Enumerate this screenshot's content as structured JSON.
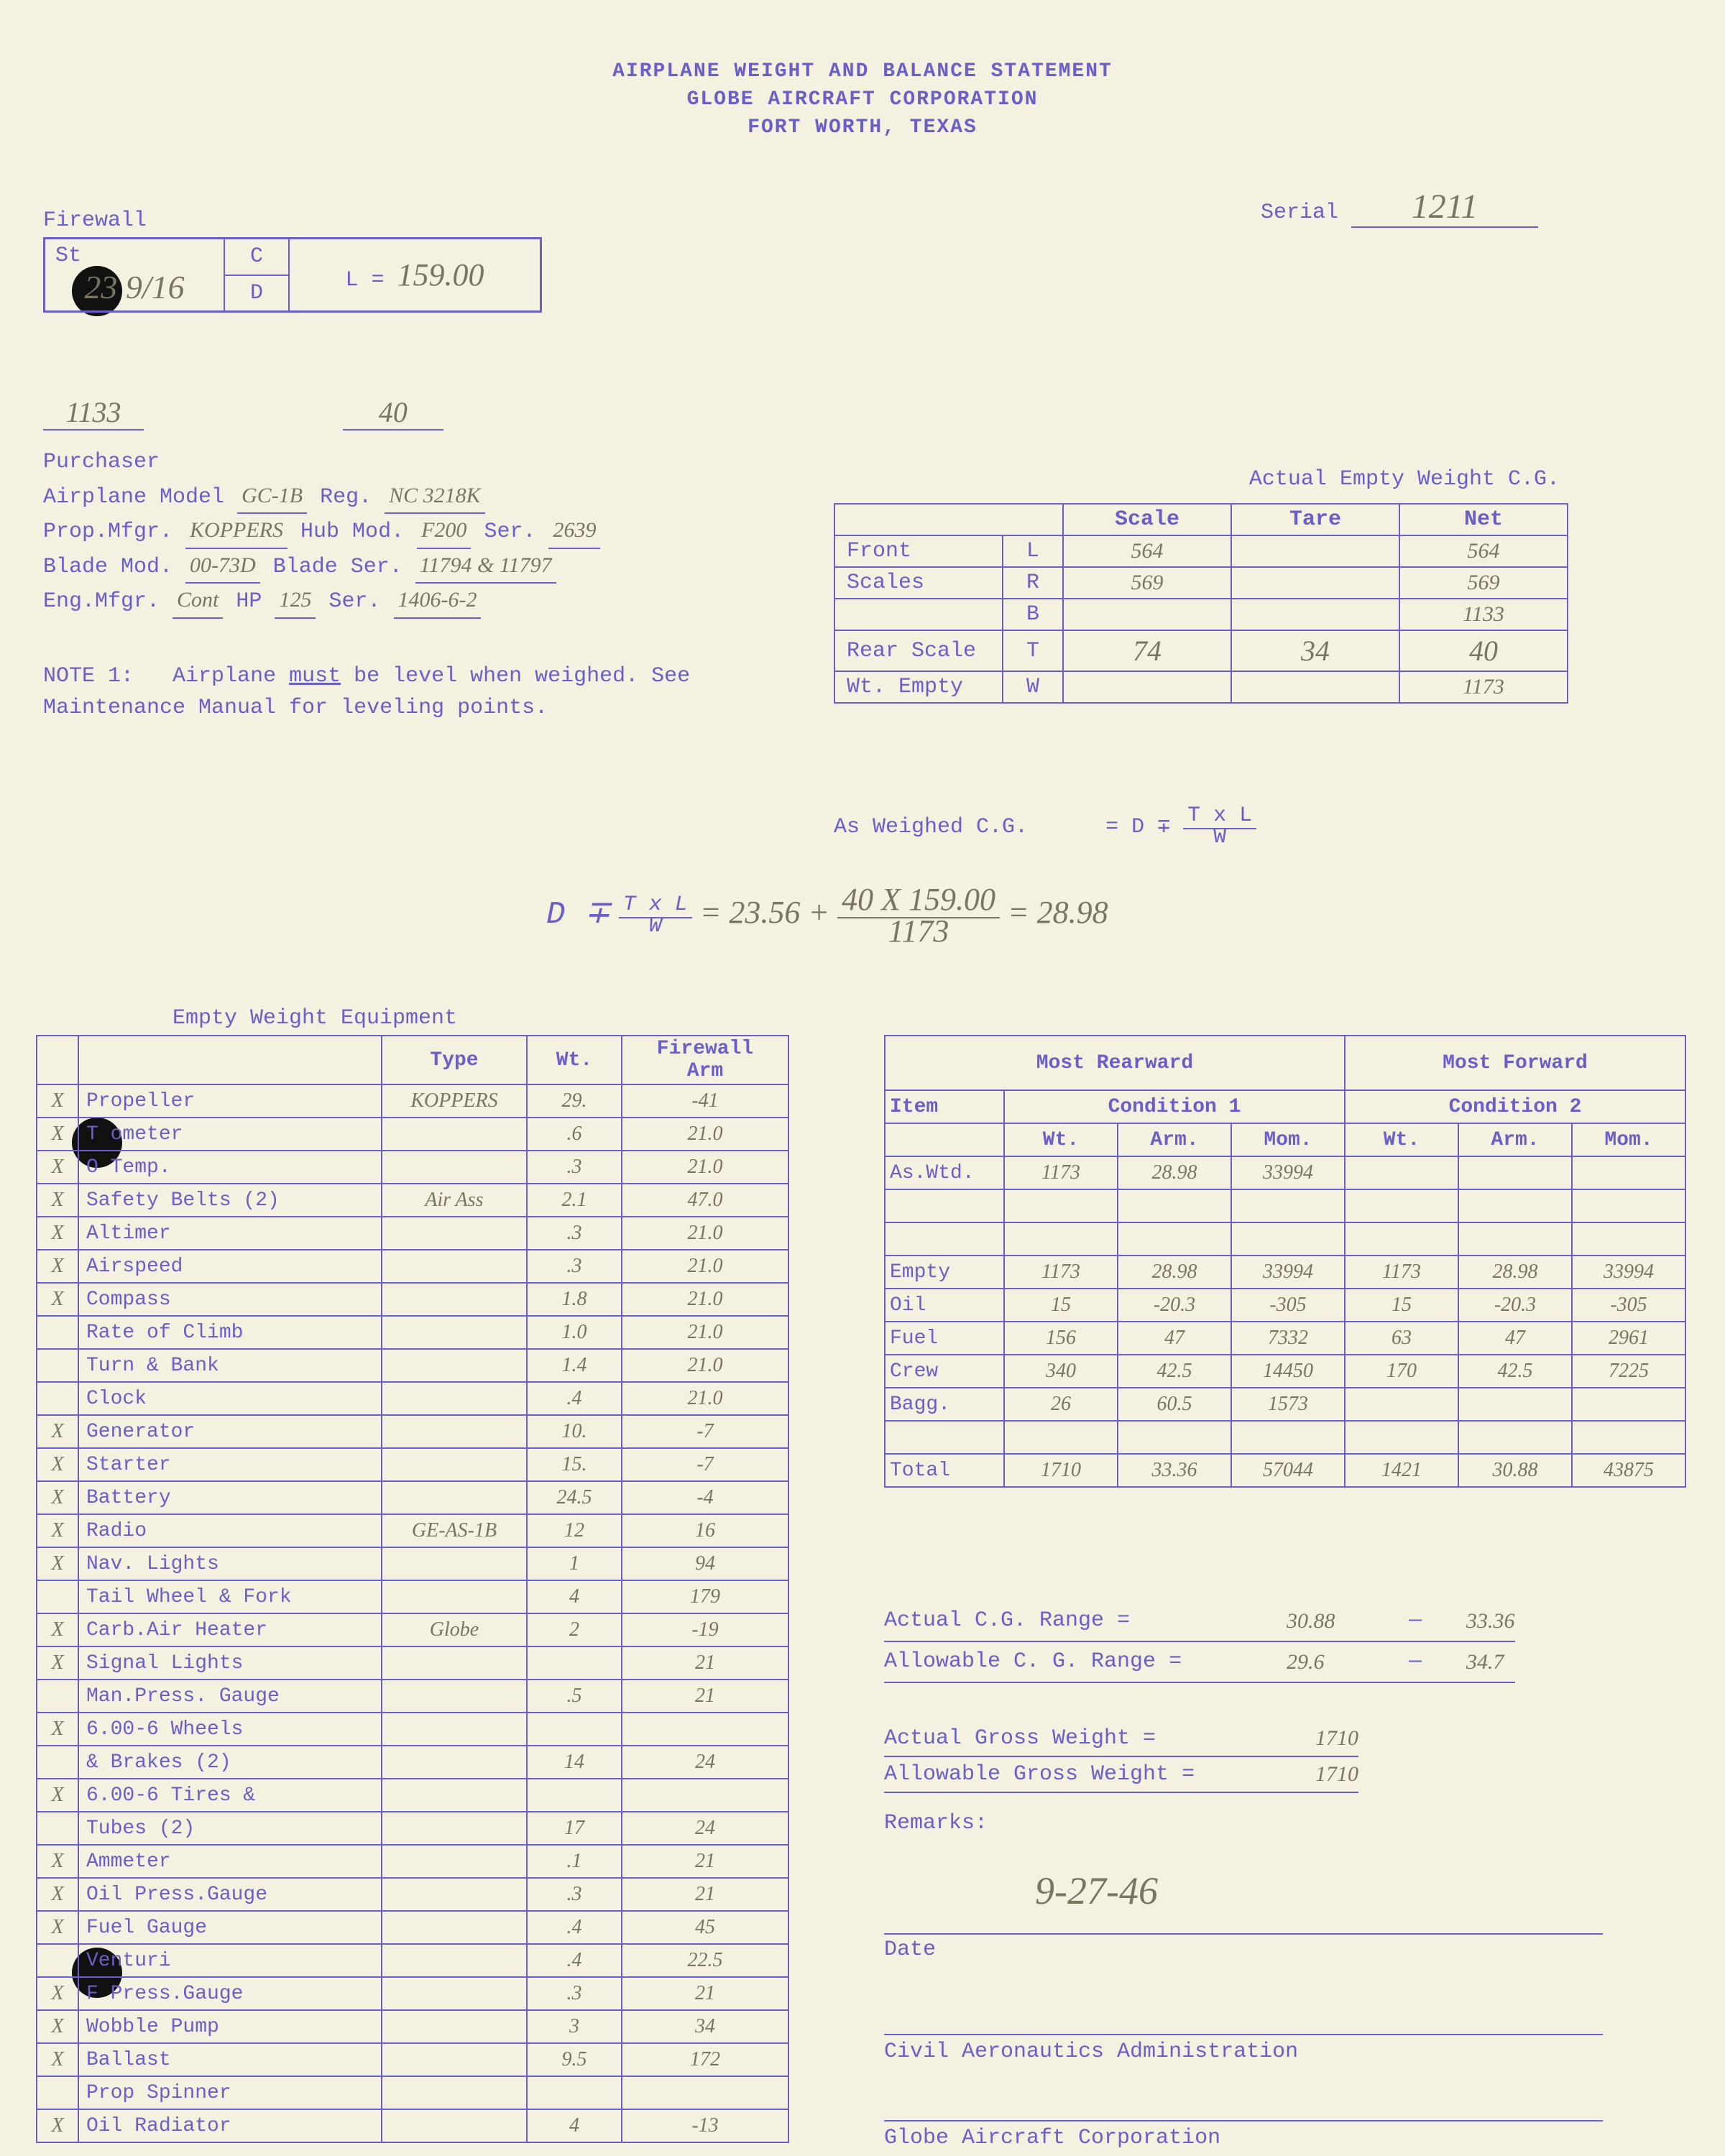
{
  "header": {
    "l1": "AIRPLANE WEIGHT AND BALANCE STATEMENT",
    "l2": "GLOBE AIRCRAFT CORPORATION",
    "l3": "FORT WORTH, TEXAS"
  },
  "serial": {
    "label": "Serial",
    "value": "1211"
  },
  "firewall": {
    "label": "Firewall",
    "st_label": "St",
    "st": "23 9/16",
    "c": "C",
    "d": "D",
    "L_label": "L =",
    "L": "159.00"
  },
  "nums_below": {
    "a": "1133",
    "b": "40"
  },
  "purchaser": {
    "title": "Purchaser",
    "rows": {
      "model_lbl": "Airplane Model",
      "model": "GC-1B",
      "reg_lbl": "Reg.",
      "reg": "NC 3218K",
      "prop_mfgr_lbl": "Prop.Mfgr.",
      "prop_mfgr": "KOPPERS",
      "hub_lbl": "Hub Mod.",
      "hub": "F200",
      "hub_ser_lbl": "Ser.",
      "hub_ser": "2639",
      "blade_lbl": "Blade Mod.",
      "blade": "00-73D",
      "blade_ser_lbl": "Blade Ser.",
      "blade_ser": "11794 & 11797",
      "eng_lbl": "Eng.Mfgr.",
      "eng": "Cont",
      "hp_lbl": "HP",
      "hp": "125",
      "eng_ser_lbl": "Ser.",
      "eng_ser": "1406-6-2"
    }
  },
  "note1": {
    "lbl": "NOTE 1:",
    "txt1": "Airplane ",
    "must": "must",
    "txt2": " be level when weighed. See Maintenance Manual for leveling points."
  },
  "cg": {
    "title": "Actual Empty Weight C.G.",
    "cols": {
      "scale": "Scale",
      "tare": "Tare",
      "net": "Net"
    },
    "rows": [
      {
        "a": "Front",
        "b": "L",
        "s": "564",
        "t": "",
        "n": "564"
      },
      {
        "a": "Scales",
        "b": "R",
        "s": "569",
        "t": "",
        "n": "569"
      },
      {
        "a": "",
        "b": "B",
        "s": "",
        "t": "",
        "n": "1133"
      },
      {
        "a": "Rear Scale",
        "b": "T",
        "s": "74",
        "t": "34",
        "n": "40"
      },
      {
        "a": "Wt. Empty",
        "b": "W",
        "s": "",
        "t": "",
        "n": "1173"
      }
    ],
    "formula_lbl": "As Weighed C.G.",
    "formula_eq": "= D ∓",
    "formula_frac_t": "T x L",
    "formula_frac_b": "W"
  },
  "calc": {
    "pre": "D ∓",
    "frac_t": "T x L",
    "frac_b": "W",
    "eq": "= 23.56 +",
    "n_t": "40 X   159.00",
    "n_b": "1173",
    "res": "= 28.98"
  },
  "ewe": {
    "title": "Empty Weight Equipment",
    "cols": {
      "type": "Type",
      "wt": "Wt.",
      "arm": "Firewall\nArm"
    },
    "rows": [
      {
        "x": "X",
        "n": "Propeller",
        "t": "KOPPERS",
        "w": "29.",
        "a": "-41"
      },
      {
        "x": "X",
        "n": "T  ometer",
        "t": "",
        "w": ".6",
        "a": "21.0"
      },
      {
        "x": "X",
        "n": "O   Temp.",
        "t": "",
        "w": ".3",
        "a": "21.0"
      },
      {
        "x": "X",
        "n": "Safety Belts (2)",
        "t": "Air Ass",
        "w": "2.1",
        "a": "47.0"
      },
      {
        "x": "X",
        "n": "Altimer",
        "t": "",
        "w": ".3",
        "a": "21.0"
      },
      {
        "x": "X",
        "n": "Airspeed",
        "t": "",
        "w": ".3",
        "a": "21.0"
      },
      {
        "x": "X",
        "n": "Compass",
        "t": "",
        "w": "1.8",
        "a": "21.0"
      },
      {
        "x": "",
        "n": "Rate of Climb",
        "t": "",
        "w": "1.0",
        "a": "21.0"
      },
      {
        "x": "",
        "n": "Turn & Bank",
        "t": "",
        "w": "1.4",
        "a": "21.0"
      },
      {
        "x": "",
        "n": "Clock",
        "t": "",
        "w": ".4",
        "a": "21.0"
      },
      {
        "x": "X",
        "n": "Generator",
        "t": "",
        "w": "10.",
        "a": "-7"
      },
      {
        "x": "X",
        "n": "Starter",
        "t": "",
        "w": "15.",
        "a": "-7"
      },
      {
        "x": "X",
        "n": "Battery",
        "t": "",
        "w": "24.5",
        "a": "-4"
      },
      {
        "x": "X",
        "n": "Radio",
        "t": "GE-AS-1B",
        "w": "12",
        "a": "16"
      },
      {
        "x": "X",
        "n": "Nav. Lights",
        "t": "",
        "w": "1",
        "a": "94"
      },
      {
        "x": "",
        "n": "Tail Wheel & Fork",
        "t": "",
        "w": "4",
        "a": "179"
      },
      {
        "x": "X",
        "n": "Carb.Air Heater",
        "t": "Globe",
        "w": "2",
        "a": "-19"
      },
      {
        "x": "X",
        "n": "Signal Lights",
        "t": "",
        "w": "",
        "a": "21"
      },
      {
        "x": "",
        "n": "Man.Press. Gauge",
        "t": "",
        "w": ".5",
        "a": "21"
      },
      {
        "x": "X",
        "n": "6.00-6 Wheels",
        "t": "",
        "w": "",
        "a": ""
      },
      {
        "x": "",
        "n": "& Brakes (2)",
        "t": "",
        "w": "14",
        "a": "24"
      },
      {
        "x": "X",
        "n": "6.00-6 Tires &",
        "t": "",
        "w": "",
        "a": ""
      },
      {
        "x": "",
        "n": "Tubes (2)",
        "t": "",
        "w": "17",
        "a": "24"
      },
      {
        "x": "X",
        "n": "Ammeter",
        "t": "",
        "w": ".1",
        "a": "21"
      },
      {
        "x": "X",
        "n": "Oil Press.Gauge",
        "t": "",
        "w": ".3",
        "a": "21"
      },
      {
        "x": "X",
        "n": "Fuel Gauge",
        "t": "",
        "w": ".4",
        "a": "45"
      },
      {
        "x": "",
        "n": "Venturi",
        "t": "",
        "w": ".4",
        "a": "22.5"
      },
      {
        "x": "X",
        "n": "F   Press.Gauge",
        "t": "",
        "w": ".3",
        "a": "21"
      },
      {
        "x": "X",
        "n": "Wobble Pump",
        "t": "",
        "w": "3",
        "a": "34"
      },
      {
        "x": "X",
        "n": "Ballast",
        "t": "",
        "w": "9.5",
        "a": "172"
      },
      {
        "x": "",
        "n": "Prop Spinner",
        "t": "",
        "w": "",
        "a": ""
      },
      {
        "x": "X",
        "n": "Oil Radiator",
        "t": "",
        "w": "4",
        "a": "-13"
      }
    ]
  },
  "cond": {
    "rear": "Most Rearward",
    "fwd": "Most Forward",
    "item": "Item",
    "c1": "Condition 1",
    "c2": "Condition 2",
    "sub": {
      "wt": "Wt.",
      "arm": "Arm.",
      "mom": "Mom."
    },
    "rows": [
      {
        "i": "As.Wtd.",
        "w1": "1173",
        "a1": "28.98",
        "m1": "33994",
        "w2": "",
        "a2": "",
        "m2": ""
      },
      {
        "i": "",
        "w1": "",
        "a1": "",
        "m1": "",
        "w2": "",
        "a2": "",
        "m2": ""
      },
      {
        "i": "",
        "w1": "",
        "a1": "",
        "m1": "",
        "w2": "",
        "a2": "",
        "m2": ""
      },
      {
        "i": "Empty",
        "w1": "1173",
        "a1": "28.98",
        "m1": "33994",
        "w2": "1173",
        "a2": "28.98",
        "m2": "33994"
      },
      {
        "i": "Oil",
        "w1": "15",
        "a1": "-20.3",
        "m1": "-305",
        "w2": "15",
        "a2": "-20.3",
        "m2": "-305"
      },
      {
        "i": "Fuel",
        "w1": "156",
        "a1": "47",
        "m1": "7332",
        "w2": "63",
        "a2": "47",
        "m2": "2961"
      },
      {
        "i": "Crew",
        "w1": "340",
        "a1": "42.5",
        "m1": "14450",
        "w2": "170",
        "a2": "42.5",
        "m2": "7225"
      },
      {
        "i": "Bagg.",
        "w1": "26",
        "a1": "60.5",
        "m1": "1573",
        "w2": "",
        "a2": "",
        "m2": ""
      },
      {
        "i": "",
        "w1": "",
        "a1": "",
        "m1": "",
        "w2": "",
        "a2": "",
        "m2": ""
      },
      {
        "i": "Total",
        "w1": "1710",
        "a1": "33.36",
        "m1": "57044",
        "w2": "1421",
        "a2": "30.88",
        "m2": "43875"
      }
    ]
  },
  "ranges": {
    "actual_cg_lbl": "Actual C.G. Range =",
    "actual_cg_lo": "30.88",
    "actual_cg_hi": "33.36",
    "allow_cg_lbl": "Allowable C. G. Range =",
    "allow_cg_lo": "29.6",
    "allow_cg_hi": "34.7"
  },
  "gross": {
    "actual_lbl": "Actual Gross Weight  =",
    "actual": "1710",
    "allow_lbl": "Allowable Gross Weight =",
    "allow": "1710"
  },
  "remarks_lbl": "Remarks:",
  "date": {
    "value": "9-27-46",
    "label": "Date"
  },
  "sig1": "Civil Aeronautics Administration",
  "sig2": "Globe Aircraft Corporation"
}
